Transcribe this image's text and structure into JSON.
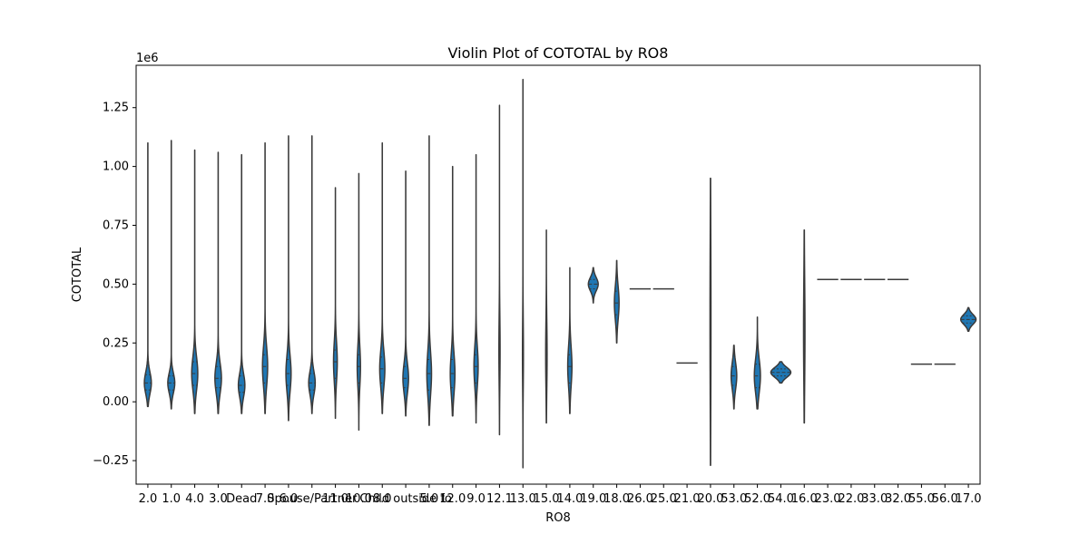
{
  "chart_data": {
    "type": "violin",
    "title": "Violin Plot of COTOTAL by RO8",
    "xlabel": "RO8",
    "ylabel": "COTOTAL",
    "y_offset_label": "1e6",
    "ylim": [
      -0.35,
      1.43
    ],
    "yticks": [
      -0.25,
      0.0,
      0.25,
      0.5,
      0.75,
      1.0,
      1.25
    ],
    "ytick_labels": [
      "−0.25",
      "0.00",
      "0.25",
      "0.50",
      "0.75",
      "1.00",
      "1.25"
    ],
    "categories": [
      "2.0",
      "1.0",
      "4.0",
      "3.0",
      "Dead",
      "7.0",
      "6.0",
      "Spouse/Partner",
      "11.0",
      "10.0",
      "8.0",
      "Child outside fo",
      "5.0",
      "12.0",
      "9.0",
      "12.1",
      "13.0",
      "15.0",
      "14.0",
      "19.0",
      "18.0",
      "26.0",
      "25.0",
      "21.0",
      "20.0",
      "53.0",
      "52.0",
      "54.0",
      "16.0",
      "23.0",
      "22.0",
      "33.0",
      "32.0",
      "55.0",
      "56.0",
      "17.0"
    ],
    "series": [
      {
        "category": "2.0",
        "min": -0.02,
        "max": 1.1,
        "median": 0.08,
        "q1": 0.05,
        "q3": 0.115,
        "peak": 0.08,
        "maxwidth": 0.3
      },
      {
        "category": "1.0",
        "min": -0.03,
        "max": 1.11,
        "median": 0.08,
        "q1": 0.05,
        "q3": 0.11,
        "peak": 0.08,
        "maxwidth": 0.3
      },
      {
        "category": "4.0",
        "min": -0.05,
        "max": 1.07,
        "median": 0.12,
        "q1": 0.07,
        "q3": 0.17,
        "peak": 0.12,
        "maxwidth": 0.26
      },
      {
        "category": "3.0",
        "min": -0.05,
        "max": 1.06,
        "median": 0.1,
        "q1": 0.06,
        "q3": 0.15,
        "peak": 0.1,
        "maxwidth": 0.28
      },
      {
        "category": "Dead",
        "min": -0.05,
        "max": 1.05,
        "median": 0.07,
        "q1": 0.04,
        "q3": 0.11,
        "peak": 0.07,
        "maxwidth": 0.28
      },
      {
        "category": "7.0",
        "min": -0.05,
        "max": 1.1,
        "median": 0.15,
        "q1": 0.08,
        "q3": 0.2,
        "peak": 0.15,
        "maxwidth": 0.22
      },
      {
        "category": "6.0",
        "min": -0.08,
        "max": 1.13,
        "median": 0.12,
        "q1": 0.07,
        "q3": 0.18,
        "peak": 0.12,
        "maxwidth": 0.22
      },
      {
        "category": "Spouse/Partner",
        "min": -0.05,
        "max": 1.13,
        "median": 0.08,
        "q1": 0.05,
        "q3": 0.12,
        "peak": 0.08,
        "maxwidth": 0.28
      },
      {
        "category": "11.0",
        "min": -0.07,
        "max": 0.91,
        "median": 0.17,
        "q1": 0.1,
        "q3": 0.22,
        "peak": 0.17,
        "maxwidth": 0.16
      },
      {
        "category": "10.0",
        "min": -0.12,
        "max": 0.97,
        "median": 0.15,
        "q1": 0.08,
        "q3": 0.2,
        "peak": 0.15,
        "maxwidth": 0.14
      },
      {
        "category": "8.0",
        "min": -0.05,
        "max": 1.1,
        "median": 0.14,
        "q1": 0.08,
        "q3": 0.19,
        "peak": 0.14,
        "maxwidth": 0.22
      },
      {
        "category": "Child outside fo",
        "min": -0.06,
        "max": 0.98,
        "median": 0.1,
        "q1": 0.06,
        "q3": 0.15,
        "peak": 0.1,
        "maxwidth": 0.24
      },
      {
        "category": "5.0",
        "min": -0.1,
        "max": 1.13,
        "median": 0.12,
        "q1": 0.05,
        "q3": 0.18,
        "peak": 0.12,
        "maxwidth": 0.2
      },
      {
        "category": "12.0",
        "min": -0.06,
        "max": 1.0,
        "median": 0.12,
        "q1": 0.06,
        "q3": 0.18,
        "peak": 0.12,
        "maxwidth": 0.2
      },
      {
        "category": "9.0",
        "min": -0.09,
        "max": 1.05,
        "median": 0.15,
        "q1": 0.08,
        "q3": 0.2,
        "peak": 0.15,
        "maxwidth": 0.18
      },
      {
        "category": "12.1",
        "min": -0.14,
        "max": 1.26,
        "median": 0.2,
        "q1": 0.1,
        "q3": 0.3,
        "peak": 0.22,
        "maxwidth": 0.05
      },
      {
        "category": "13.0",
        "min": -0.28,
        "max": 1.37,
        "median": 0.2,
        "q1": 0.1,
        "q3": 0.3,
        "peak": 0.2,
        "maxwidth": 0.04
      },
      {
        "category": "15.0",
        "min": -0.09,
        "max": 0.73,
        "median": 0.2,
        "q1": 0.1,
        "q3": 0.3,
        "peak": 0.2,
        "maxwidth": 0.06
      },
      {
        "category": "14.0",
        "min": -0.05,
        "max": 0.57,
        "median": 0.15,
        "q1": 0.08,
        "q3": 0.2,
        "peak": 0.15,
        "maxwidth": 0.18
      },
      {
        "category": "19.0",
        "min": 0.42,
        "max": 0.57,
        "median": 0.5,
        "q1": 0.48,
        "q3": 0.52,
        "peak": 0.5,
        "maxwidth": 0.42
      },
      {
        "category": "18.0",
        "min": 0.25,
        "max": 0.6,
        "median": 0.42,
        "q1": 0.37,
        "q3": 0.47,
        "peak": 0.42,
        "maxwidth": 0.2
      },
      {
        "category": "26.0",
        "min": 0.48,
        "max": 0.48,
        "median": 0.48,
        "q1": 0.48,
        "q3": 0.48,
        "peak": 0.48,
        "maxwidth": 0.9
      },
      {
        "category": "25.0",
        "min": 0.48,
        "max": 0.48,
        "median": 0.48,
        "q1": 0.48,
        "q3": 0.48,
        "peak": 0.48,
        "maxwidth": 0.9
      },
      {
        "category": "21.0",
        "min": 0.165,
        "max": 0.165,
        "median": 0.165,
        "q1": 0.165,
        "q3": 0.165,
        "peak": 0.165,
        "maxwidth": 0.9
      },
      {
        "category": "20.0",
        "min": -0.27,
        "max": 0.95,
        "median": 0.35,
        "q1": 0.1,
        "q3": 0.6,
        "peak": 0.35,
        "maxwidth": 0.04
      },
      {
        "category": "53.0",
        "min": -0.03,
        "max": 0.24,
        "median": 0.11,
        "q1": 0.07,
        "q3": 0.15,
        "peak": 0.11,
        "maxwidth": 0.24
      },
      {
        "category": "52.0",
        "min": -0.03,
        "max": 0.36,
        "median": 0.11,
        "q1": 0.06,
        "q3": 0.16,
        "peak": 0.11,
        "maxwidth": 0.26
      },
      {
        "category": "54.0",
        "min": 0.08,
        "max": 0.17,
        "median": 0.125,
        "q1": 0.11,
        "q3": 0.14,
        "peak": 0.125,
        "maxwidth": 0.85
      },
      {
        "category": "16.0",
        "min": -0.09,
        "max": 0.73,
        "median": 0.3,
        "q1": 0.15,
        "q3": 0.45,
        "peak": 0.3,
        "maxwidth": 0.06
      },
      {
        "category": "23.0",
        "min": 0.52,
        "max": 0.52,
        "median": 0.52,
        "q1": 0.52,
        "q3": 0.52,
        "peak": 0.52,
        "maxwidth": 0.9
      },
      {
        "category": "22.0",
        "min": 0.52,
        "max": 0.52,
        "median": 0.52,
        "q1": 0.52,
        "q3": 0.52,
        "peak": 0.52,
        "maxwidth": 0.9
      },
      {
        "category": "33.0",
        "min": 0.52,
        "max": 0.52,
        "median": 0.52,
        "q1": 0.52,
        "q3": 0.52,
        "peak": 0.52,
        "maxwidth": 0.9
      },
      {
        "category": "32.0",
        "min": 0.52,
        "max": 0.52,
        "median": 0.52,
        "q1": 0.52,
        "q3": 0.52,
        "peak": 0.52,
        "maxwidth": 0.9
      },
      {
        "category": "55.0",
        "min": 0.16,
        "max": 0.16,
        "median": 0.16,
        "q1": 0.16,
        "q3": 0.16,
        "peak": 0.16,
        "maxwidth": 0.9
      },
      {
        "category": "56.0",
        "min": 0.16,
        "max": 0.16,
        "median": 0.16,
        "q1": 0.16,
        "q3": 0.16,
        "peak": 0.16,
        "maxwidth": 0.9
      },
      {
        "category": "17.0",
        "min": 0.3,
        "max": 0.4,
        "median": 0.35,
        "q1": 0.335,
        "q3": 0.365,
        "peak": 0.35,
        "maxwidth": 0.65
      }
    ],
    "colors": {
      "fill": "#1f77b4",
      "edge": "#3a3a3a",
      "inner": "#3a3a3a",
      "axis": "#000000"
    },
    "grid": false,
    "legend": "none"
  }
}
